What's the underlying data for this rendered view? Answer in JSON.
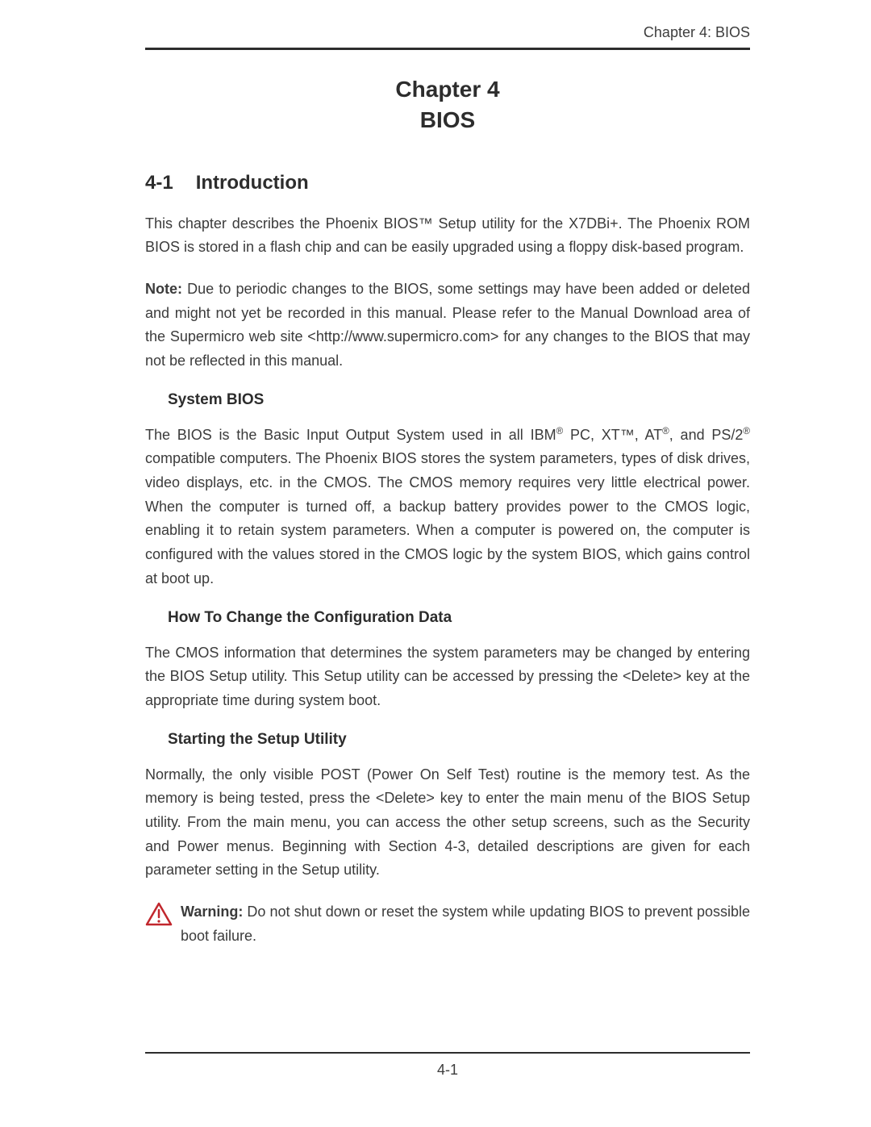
{
  "running_head": "Chapter 4: BIOS",
  "chapter": {
    "line1": "Chapter 4",
    "line2": "BIOS"
  },
  "section": {
    "number": "4-1",
    "title": "Introduction"
  },
  "intro_para": "This chapter describes the Phoenix BIOS™ Setup utility for the X7DBi+. The Phoenix ROM BIOS is stored in a flash chip and can be easily upgraded using a floppy disk-based program.",
  "note": {
    "label": "Note:",
    "text": " Due to periodic changes to the BIOS, some settings may have been added or deleted and might not yet be recorded in this manual. Please refer to the Manual Download area of the Supermicro web site <http://www.supermicro.com> for any changes to the BIOS that may not be reflected in this manual."
  },
  "sub1": {
    "heading": "System BIOS",
    "text_html": "The BIOS is the Basic Input Output System used in all IBM<sup>®</sup> PC, XT™, AT<sup>®</sup>, and PS/2<sup>®</sup> compatible computers. The Phoenix BIOS stores the system parameters, types of disk drives, video displays, etc. in the CMOS. The CMOS memory requires very little electrical power. When the computer is turned off, a backup battery provides power to the CMOS logic, enabling it to retain system parameters. When a computer is powered on, the computer is configured with the values stored in the CMOS logic by the system BIOS, which gains control at boot up."
  },
  "sub2": {
    "heading": "How To Change the Configuration Data",
    "text": "The CMOS information that determines the system parameters may be changed by entering the BIOS Setup utility. This Setup utility can be accessed by pressing the <Delete> key at the appropriate time during system boot."
  },
  "sub3": {
    "heading": "Starting the Setup Utility",
    "text": "Normally, the only visible POST (Power On Self Test) routine is the memory test.  As the memory is being tested, press the <Delete> key to enter the main menu of the BIOS Setup utility. From the main menu, you can access the other setup screens, such as the Security and Power menus. Beginning with Section 4-3, detailed descriptions are given for each parameter setting in the Setup utility."
  },
  "warning": {
    "label": "Warning:",
    "text": " Do not shut down or reset the system while updating BIOS to prevent possible boot failure.",
    "icon_color": "#c1272d"
  },
  "page_number": "4-1"
}
